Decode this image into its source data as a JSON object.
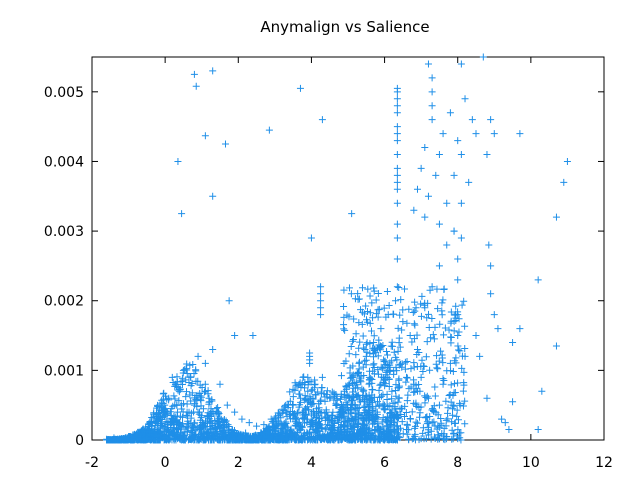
{
  "chart_data": {
    "type": "scatter",
    "title": "Anymalign vs Salience",
    "xlabel": "",
    "ylabel": "",
    "xlim": [
      -2,
      12
    ],
    "ylim": [
      0,
      0.0055
    ],
    "x_ticks": [
      -2,
      0,
      2,
      4,
      6,
      8,
      10,
      12
    ],
    "y_ticks": [
      0,
      0.001,
      0.002,
      0.003,
      0.004,
      0.005
    ],
    "x_tick_labels": [
      "-2",
      "0",
      "2",
      "4",
      "6",
      "8",
      "10",
      "12"
    ],
    "y_tick_labels": [
      "0",
      "0.001",
      "0.002",
      "0.003",
      "0.004",
      "0.005"
    ],
    "grid": false,
    "marker": "plus",
    "color": "#1f8fe8",
    "series": [
      {
        "points": [
          [
            -1.6,
            1e-05
          ],
          [
            -1.4,
            3e-05
          ],
          [
            -1.2,
            2e-05
          ],
          [
            -1.0,
            5e-05
          ],
          [
            -0.8,
            4e-05
          ],
          [
            -0.6,
            8e-05
          ],
          [
            -0.4,
            0.0001
          ],
          [
            -0.2,
            0.00015
          ],
          [
            0.0,
            0.0002
          ],
          [
            0.2,
            0.0003
          ],
          [
            0.4,
            0.00025
          ],
          [
            0.6,
            0.0004
          ],
          [
            0.8,
            0.0005
          ],
          [
            1.0,
            0.00035
          ],
          [
            1.2,
            0.0006
          ],
          [
            1.4,
            0.00045
          ],
          [
            0.1,
            0.0006
          ],
          [
            0.3,
            0.0008
          ],
          [
            0.5,
            0.001
          ],
          [
            0.7,
            0.0009
          ],
          [
            0.9,
            0.0012
          ],
          [
            1.1,
            0.0011
          ],
          [
            1.3,
            0.0013
          ],
          [
            1.5,
            0.0008
          ],
          [
            1.7,
            0.0005
          ],
          [
            1.9,
            0.0004
          ],
          [
            2.1,
            0.0003
          ],
          [
            2.3,
            0.00025
          ],
          [
            2.5,
            0.0002
          ],
          [
            2.7,
            0.00022
          ],
          [
            2.9,
            0.0003
          ],
          [
            3.1,
            0.00035
          ],
          [
            3.3,
            0.0004
          ],
          [
            3.5,
            0.0005
          ],
          [
            3.7,
            0.0006
          ],
          [
            3.9,
            0.0007
          ],
          [
            4.1,
            0.0008
          ],
          [
            4.3,
            0.0009
          ],
          [
            4.5,
            0.0006
          ],
          [
            4.7,
            0.0005
          ],
          [
            4.9,
            0.0007
          ],
          [
            5.1,
            0.0009
          ],
          [
            5.3,
            0.0011
          ],
          [
            5.5,
            0.0012
          ],
          [
            5.7,
            0.0014
          ],
          [
            5.9,
            0.0016
          ],
          [
            6.1,
            0.0018
          ],
          [
            6.3,
            0.002
          ],
          [
            6.5,
            0.0017
          ],
          [
            6.7,
            0.0015
          ],
          [
            6.9,
            0.0013
          ],
          [
            7.1,
            0.0019
          ],
          [
            7.3,
            0.0022
          ],
          [
            7.5,
            0.0025
          ],
          [
            7.7,
            0.0028
          ],
          [
            7.9,
            0.003
          ],
          [
            0.35,
            0.004
          ],
          [
            0.45,
            0.00325
          ],
          [
            0.8,
            0.00525
          ],
          [
            0.85,
            0.00508
          ],
          [
            1.3,
            0.0053
          ],
          [
            1.1,
            0.00437
          ],
          [
            1.65,
            0.00425
          ],
          [
            1.3,
            0.0035
          ],
          [
            2.85,
            0.00445
          ],
          [
            3.7,
            0.00505
          ],
          [
            4.3,
            0.0046
          ],
          [
            5.1,
            0.00325
          ],
          [
            1.75,
            0.002
          ],
          [
            1.9,
            0.0015
          ],
          [
            2.4,
            0.0015
          ],
          [
            4.0,
            0.0029
          ],
          [
            4.25,
            0.0022
          ],
          [
            4.25,
            0.0021
          ],
          [
            4.25,
            0.002
          ],
          [
            4.25,
            0.0019
          ],
          [
            4.25,
            0.0018
          ],
          [
            3.95,
            0.00125
          ],
          [
            3.95,
            0.0012
          ],
          [
            3.95,
            0.00115
          ],
          [
            3.95,
            0.0011
          ],
          [
            3.9,
            0.0009
          ],
          [
            6.35,
            0.00505
          ],
          [
            6.35,
            0.005
          ],
          [
            6.35,
            0.0049
          ],
          [
            6.35,
            0.0048
          ],
          [
            6.35,
            0.0047
          ],
          [
            6.35,
            0.0045
          ],
          [
            6.35,
            0.0044
          ],
          [
            6.35,
            0.0043
          ],
          [
            6.35,
            0.0041
          ],
          [
            6.35,
            0.0039
          ],
          [
            6.35,
            0.0038
          ],
          [
            6.35,
            0.0037
          ],
          [
            6.35,
            0.0036
          ],
          [
            6.35,
            0.0034
          ],
          [
            6.35,
            0.0031
          ],
          [
            6.35,
            0.0029
          ],
          [
            6.35,
            0.0026
          ],
          [
            6.35,
            0.0022
          ],
          [
            7.3,
            0.0052
          ],
          [
            7.3,
            0.005
          ],
          [
            7.3,
            0.0048
          ],
          [
            7.3,
            0.0046
          ],
          [
            7.2,
            0.0054
          ],
          [
            8.1,
            0.0054
          ],
          [
            8.3,
            0.0056
          ],
          [
            8.7,
            0.0055
          ],
          [
            7.8,
            0.0047
          ],
          [
            8.2,
            0.0049
          ],
          [
            8.4,
            0.0046
          ],
          [
            8.9,
            0.0046
          ],
          [
            7.6,
            0.0044
          ],
          [
            8.0,
            0.0043
          ],
          [
            8.5,
            0.0044
          ],
          [
            9.0,
            0.0044
          ],
          [
            9.7,
            0.0044
          ],
          [
            7.1,
            0.0042
          ],
          [
            7.5,
            0.0041
          ],
          [
            8.1,
            0.0041
          ],
          [
            8.8,
            0.0041
          ],
          [
            7.0,
            0.0039
          ],
          [
            7.4,
            0.0038
          ],
          [
            7.9,
            0.0038
          ],
          [
            8.3,
            0.0037
          ],
          [
            6.9,
            0.0036
          ],
          [
            7.2,
            0.0035
          ],
          [
            7.7,
            0.0034
          ],
          [
            8.1,
            0.0034
          ],
          [
            6.8,
            0.0033
          ],
          [
            7.1,
            0.0032
          ],
          [
            7.5,
            0.0031
          ],
          [
            7.9,
            0.003
          ],
          [
            8.1,
            0.0029
          ],
          [
            8.0,
            0.0026
          ],
          [
            8.0,
            0.0023
          ],
          [
            8.0,
            0.0018
          ],
          [
            8.0,
            0.0015
          ],
          [
            8.5,
            0.0015
          ],
          [
            8.6,
            0.0012
          ],
          [
            8.9,
            0.0021
          ],
          [
            9.0,
            0.0018
          ],
          [
            9.1,
            0.0016
          ],
          [
            9.5,
            0.0014
          ],
          [
            8.85,
            0.0028
          ],
          [
            8.9,
            0.0025
          ],
          [
            9.5,
            0.00055
          ],
          [
            9.2,
            0.0003
          ],
          [
            9.3,
            0.00025
          ],
          [
            9.4,
            0.00015
          ],
          [
            9.7,
            0.0016
          ],
          [
            10.2,
            0.0023
          ],
          [
            10.3,
            0.0007
          ],
          [
            10.2,
            0.00015
          ],
          [
            10.7,
            0.0032
          ],
          [
            10.7,
            0.00135
          ],
          [
            10.9,
            0.0037
          ],
          [
            11.0,
            0.004
          ],
          [
            8.8,
            0.0006
          ],
          [
            7.2,
            0.0006
          ],
          [
            7.5,
            0.0005
          ],
          [
            6.0,
            0.0005
          ],
          [
            5.6,
            0.0006
          ],
          [
            5.9,
            0.0008
          ],
          [
            6.2,
            0.0007
          ],
          [
            6.6,
            0.0009
          ],
          [
            6.8,
            0.0008
          ],
          [
            7.0,
            0.0009
          ],
          [
            3.8,
            0.0003
          ],
          [
            3.6,
            0.0002
          ],
          [
            3.4,
            0.0001
          ],
          [
            2.8,
            0.00015
          ],
          [
            2.2,
            0.0001
          ],
          [
            1.6,
            0.0002
          ],
          [
            1.0,
            0.0001
          ],
          [
            0.6,
            0.00012
          ],
          [
            0.2,
            8e-05
          ],
          [
            -0.2,
            4e-05
          ],
          [
            -0.6,
            2e-05
          ],
          [
            -1.0,
            1e-05
          ],
          [
            0.0,
            1e-05
          ],
          [
            1.0,
            1e-05
          ],
          [
            2.0,
            1e-05
          ],
          [
            3.0,
            1e-05
          ],
          [
            4.0,
            1e-05
          ],
          [
            5.0,
            1e-05
          ],
          [
            6.0,
            1e-05
          ],
          [
            7.0,
            2e-05
          ],
          [
            8.0,
            2e-05
          ],
          [
            4.5,
            0.0003
          ],
          [
            5.0,
            0.0002
          ],
          [
            5.5,
            0.0003
          ],
          [
            4.8,
            0.0004
          ],
          [
            5.2,
            0.0005
          ],
          [
            5.8,
            0.0004
          ],
          [
            6.4,
            0.0006
          ],
          [
            6.9,
            0.0007
          ],
          [
            7.6,
            0.0008
          ],
          [
            7.8,
            0.0011
          ],
          [
            8.2,
            0.0012
          ]
        ]
      }
    ]
  }
}
